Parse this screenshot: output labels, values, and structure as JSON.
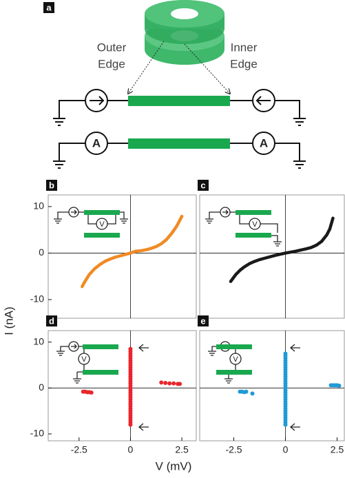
{
  "diagram": {
    "panel": "a",
    "outer_edge": [
      "Outer",
      "Edge"
    ],
    "inner_edge": [
      "Inner",
      "Edge"
    ],
    "ammeter": "A"
  },
  "x_label": "V (mV)",
  "y_label": "I (nA)",
  "chart_data": [
    {
      "type": "line",
      "panel": "b",
      "inset_meter": "V",
      "color": "#f08a24",
      "x": [
        -2.35,
        -2.2,
        -2,
        -1.75,
        -1.5,
        -1.25,
        -1,
        -0.75,
        -0.5,
        -0.25,
        0,
        0.25,
        0.5,
        0.75,
        1,
        1.25,
        1.5,
        1.75,
        2,
        2.25,
        2.5
      ],
      "values": [
        -7.2,
        -6,
        -4.6,
        -3.4,
        -2.5,
        -1.8,
        -1.3,
        -0.9,
        -0.6,
        -0.3,
        0,
        0.4,
        0.5,
        0.7,
        1,
        1.4,
        2,
        2.9,
        4.2,
        5.8,
        7.9
      ],
      "xlim": [
        -4,
        3.2
      ],
      "ylim": [
        -14,
        12.5
      ],
      "yticks": [
        10,
        0,
        -10
      ],
      "zero_lines": true
    },
    {
      "type": "line",
      "panel": "c",
      "inset_meter": "V",
      "color": "#1a1a1a",
      "x": [
        -2.65,
        -2.4,
        -2.2,
        -2,
        -1.75,
        -1.5,
        -1.25,
        -1,
        -0.5,
        0,
        0.5,
        1,
        1.25,
        1.5,
        1.75,
        2,
        2.15,
        2.3
      ],
      "values": [
        -6.1,
        -4.6,
        -3.7,
        -3,
        -2.3,
        -1.8,
        -1.4,
        -1.1,
        -0.5,
        0,
        0.4,
        0.9,
        1.2,
        1.7,
        2.5,
        3.9,
        5.2,
        7.5
      ],
      "xlim": [
        -4.15,
        2.85
      ],
      "ylim": [
        -14,
        12.5
      ],
      "zero_lines": true
    },
    {
      "type": "scatter",
      "panel": "d",
      "inset_meter": "V",
      "color": "#e8262b",
      "x": [
        0,
        0,
        0,
        0,
        0,
        0,
        0,
        0,
        0,
        0,
        0,
        0,
        0,
        0,
        0,
        0,
        0,
        0,
        0,
        0,
        0,
        0,
        0,
        0,
        0,
        0,
        0,
        0,
        0,
        0,
        0,
        0,
        0,
        0,
        -2.3,
        -2.2,
        -2.1,
        -2.0,
        -1.9,
        1.5,
        1.7,
        1.9,
        2.1,
        2.3,
        2.4
      ],
      "values": [
        -8,
        -7.5,
        -7,
        -6.5,
        -6,
        -5.5,
        -5,
        -4.5,
        -4,
        -3.5,
        -3,
        -2.5,
        -2,
        -1.5,
        -1,
        -0.5,
        0,
        0.5,
        1,
        1.5,
        2,
        2.5,
        3,
        3.5,
        4,
        4.5,
        5,
        5.5,
        6,
        6.5,
        7,
        7.5,
        8,
        8.5,
        -0.8,
        -0.8,
        -0.9,
        -0.9,
        -1.0,
        1.2,
        1.1,
        1.0,
        1.0,
        0.9,
        0.9
      ],
      "xlim": [
        -4,
        3.2
      ],
      "ylim": [
        -11.5,
        12.5
      ],
      "xticks": [
        -2.5,
        0,
        2.5
      ],
      "yticks": [
        10,
        0,
        -10
      ],
      "zero_lines": true
    },
    {
      "type": "scatter",
      "panel": "e",
      "inset_meter": "V",
      "color": "#1e9ad6",
      "x": [
        0,
        0,
        0,
        0,
        0,
        0,
        0,
        0,
        0,
        0,
        0,
        0,
        0,
        0,
        0,
        0,
        0,
        0,
        0,
        0,
        0,
        0,
        0,
        0,
        0,
        0,
        0,
        0,
        0,
        0,
        0,
        0,
        -2.2,
        -2.1,
        -2.0,
        -1.9,
        -1.6,
        2.2,
        2.3,
        2.4,
        2.5,
        2.6
      ],
      "values": [
        -8,
        -7.5,
        -7,
        -6.5,
        -6,
        -5.5,
        -5,
        -4.5,
        -4,
        -3.5,
        -3,
        -2.5,
        -2,
        -1.5,
        -1,
        -0.5,
        0,
        0.5,
        1,
        1.5,
        2,
        2.5,
        3,
        3.5,
        4,
        4.5,
        5,
        5.5,
        6,
        6.5,
        7,
        7.5,
        -0.8,
        -0.8,
        -0.9,
        -0.8,
        -1.2,
        0.6,
        0.6,
        0.6,
        0.6,
        0.5
      ],
      "xlim": [
        -4.15,
        2.85
      ],
      "ylim": [
        -11.5,
        12.5
      ],
      "xticks": [
        -2.5,
        0,
        2.5
      ],
      "zero_lines": true
    }
  ]
}
